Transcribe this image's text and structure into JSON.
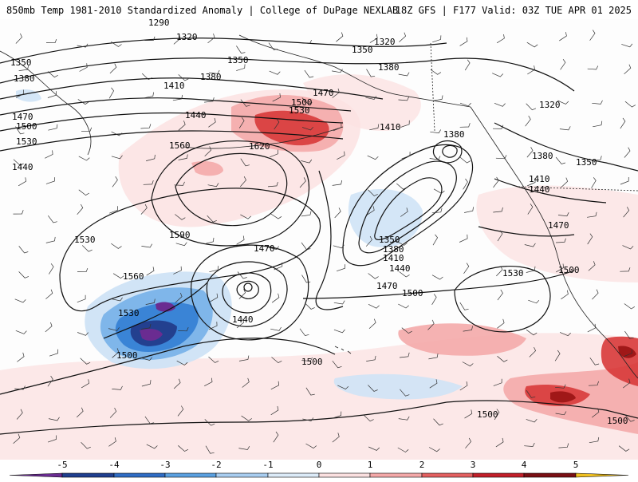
{
  "header": {
    "title_left": "850mb Temp 1981-2010 Standardized Anomaly | College of DuPage NEXLAB",
    "title_right": "18Z GFS | F177 Valid: 03Z TUE APR 01 2025"
  },
  "contour_labels": [
    {
      "id": "c1290",
      "text": "1290"
    },
    {
      "id": "c1320a",
      "text": "1320"
    },
    {
      "id": "c1320b",
      "text": "1320"
    },
    {
      "id": "c1320c",
      "text": "1320"
    },
    {
      "id": "c1350a",
      "text": "1350"
    },
    {
      "id": "c1350b",
      "text": "1350"
    },
    {
      "id": "c1350c",
      "text": "1350"
    },
    {
      "id": "c1350d",
      "text": "1350"
    },
    {
      "id": "c1350e",
      "text": "1350"
    },
    {
      "id": "c1380a",
      "text": "1380"
    },
    {
      "id": "c1380b",
      "text": "1380"
    },
    {
      "id": "c1380c",
      "text": "1380"
    },
    {
      "id": "c1380d",
      "text": "1380"
    },
    {
      "id": "c1380e",
      "text": "1380"
    },
    {
      "id": "c1380f",
      "text": "1380"
    },
    {
      "id": "c1410a",
      "text": "1410"
    },
    {
      "id": "c1410b",
      "text": "1410"
    },
    {
      "id": "c1410c",
      "text": "1410"
    },
    {
      "id": "c1410d",
      "text": "1410"
    },
    {
      "id": "c1440a",
      "text": "1440"
    },
    {
      "id": "c1440b",
      "text": "1440"
    },
    {
      "id": "c1440c",
      "text": "1440"
    },
    {
      "id": "c1440d",
      "text": "1440"
    },
    {
      "id": "c1440e",
      "text": "1440"
    },
    {
      "id": "c1470a",
      "text": "1470"
    },
    {
      "id": "c1470b",
      "text": "1470"
    },
    {
      "id": "c1470c",
      "text": "1470"
    },
    {
      "id": "c1470d",
      "text": "1470"
    },
    {
      "id": "c1470e",
      "text": "1470"
    },
    {
      "id": "c1500a",
      "text": "1500"
    },
    {
      "id": "c1500b",
      "text": "1500"
    },
    {
      "id": "c1500c",
      "text": "1500"
    },
    {
      "id": "c1500d",
      "text": "1500"
    },
    {
      "id": "c1500e",
      "text": "1500"
    },
    {
      "id": "c1500f",
      "text": "1500"
    },
    {
      "id": "c1500g",
      "text": "1500"
    },
    {
      "id": "c1500h",
      "text": "1500"
    },
    {
      "id": "c1530a",
      "text": "1530"
    },
    {
      "id": "c1530b",
      "text": "1530"
    },
    {
      "id": "c1530c",
      "text": "1530"
    },
    {
      "id": "c1530d",
      "text": "1530"
    },
    {
      "id": "c1530e",
      "text": "1530"
    },
    {
      "id": "c1560a",
      "text": "1560"
    },
    {
      "id": "c1560b",
      "text": "1560"
    },
    {
      "id": "c1590",
      "text": "1590"
    },
    {
      "id": "c1620",
      "text": "1620"
    }
  ],
  "colorbar": {
    "ticks": [
      "-5",
      "-4",
      "-3",
      "-2",
      "-1",
      "0",
      "1",
      "2",
      "3",
      "4",
      "5"
    ],
    "colors": [
      "#6a2c91",
      "#1f3f8f",
      "#2f6cc4",
      "#5aa0e0",
      "#a8cdf0",
      "#dcebf8",
      "#fbe0e0",
      "#f4a8a8",
      "#e36060",
      "#c21f2a",
      "#7a0f14",
      "#f0c020"
    ]
  },
  "colors": {
    "warm_light": "#f7c8c8",
    "warm_mid": "#ee9a9a",
    "warm_strong": "#d83a3a",
    "warm_dark": "#a01818",
    "cool_light": "#cfe3f6",
    "cool_mid": "#7fb6ea",
    "cool_strong": "#3a84d6",
    "cool_dark": "#23408f",
    "cool_extreme": "#6a2c91"
  }
}
